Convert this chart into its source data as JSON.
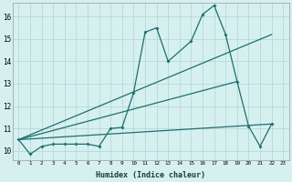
{
  "xlabel": "Humidex (Indice chaleur)",
  "background_color": "#d6f0f0",
  "grid_color": "#b0d4d4",
  "line_color": "#1e6e6e",
  "xlim": [
    -0.5,
    23.5
  ],
  "ylim": [
    9.6,
    16.6
  ],
  "ytick_values": [
    10,
    11,
    12,
    13,
    14,
    15,
    16
  ],
  "series_main": {
    "x": [
      0,
      1,
      2,
      3,
      4,
      5,
      6,
      7,
      8,
      9,
      10,
      11,
      12,
      13,
      15,
      16,
      17,
      18,
      19,
      20,
      21,
      22
    ],
    "y": [
      10.5,
      9.85,
      10.2,
      10.3,
      10.3,
      10.3,
      10.3,
      10.2,
      11.0,
      11.05,
      12.6,
      15.3,
      15.5,
      14.0,
      14.9,
      16.1,
      16.5,
      15.2,
      13.1,
      11.1,
      10.2,
      11.2
    ]
  },
  "series_line1": {
    "x": [
      0,
      22
    ],
    "y": [
      10.5,
      15.2
    ]
  },
  "series_line2": {
    "x": [
      0,
      22
    ],
    "y": [
      10.5,
      11.2
    ]
  },
  "series_line3": {
    "x": [
      0,
      19
    ],
    "y": [
      10.5,
      13.1
    ]
  }
}
